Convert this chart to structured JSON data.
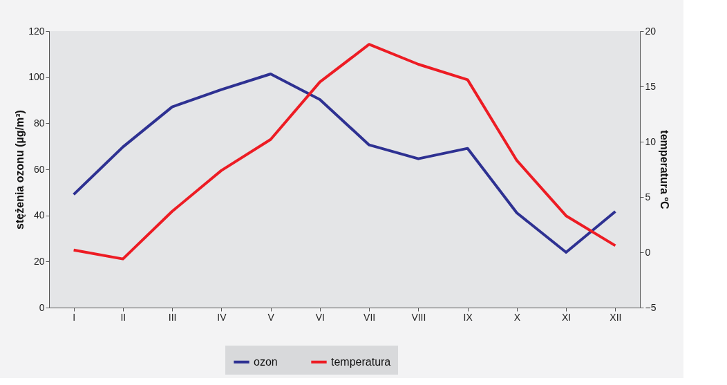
{
  "chart_data": {
    "type": "line",
    "categories": [
      "I",
      "II",
      "III",
      "IV",
      "V",
      "VI",
      "VII",
      "VIII",
      "IX",
      "X",
      "XI",
      "XII"
    ],
    "ylabel": "stężenia ozonu (µg/m³)",
    "y2label": "temperatura ºC",
    "ylim": [
      0,
      120
    ],
    "yticks": [
      0,
      20,
      40,
      60,
      80,
      100,
      120
    ],
    "y2lim": [
      -5,
      20
    ],
    "y2ticks": [
      -5,
      0,
      5,
      10,
      15,
      20
    ],
    "grid": false,
    "legend": "bottom",
    "line_style": "solid",
    "marker": "none",
    "series": [
      {
        "name": "ozon",
        "color": "#2e3192",
        "values": [
          49.1,
          69.7,
          87.1,
          94.6,
          101.4,
          90.3,
          70.6,
          64.6,
          69.1,
          41.1,
          24,
          41.7
        ]
      },
      {
        "name": "temperatura",
        "color": "#ed1c24",
        "axis": "y2",
        "values": [
          0.2,
          -0.6,
          3.7,
          7.4,
          10.2,
          15.4,
          18.8,
          17.0,
          15.6,
          8.3,
          3.3,
          0.6
        ]
      }
    ]
  }
}
